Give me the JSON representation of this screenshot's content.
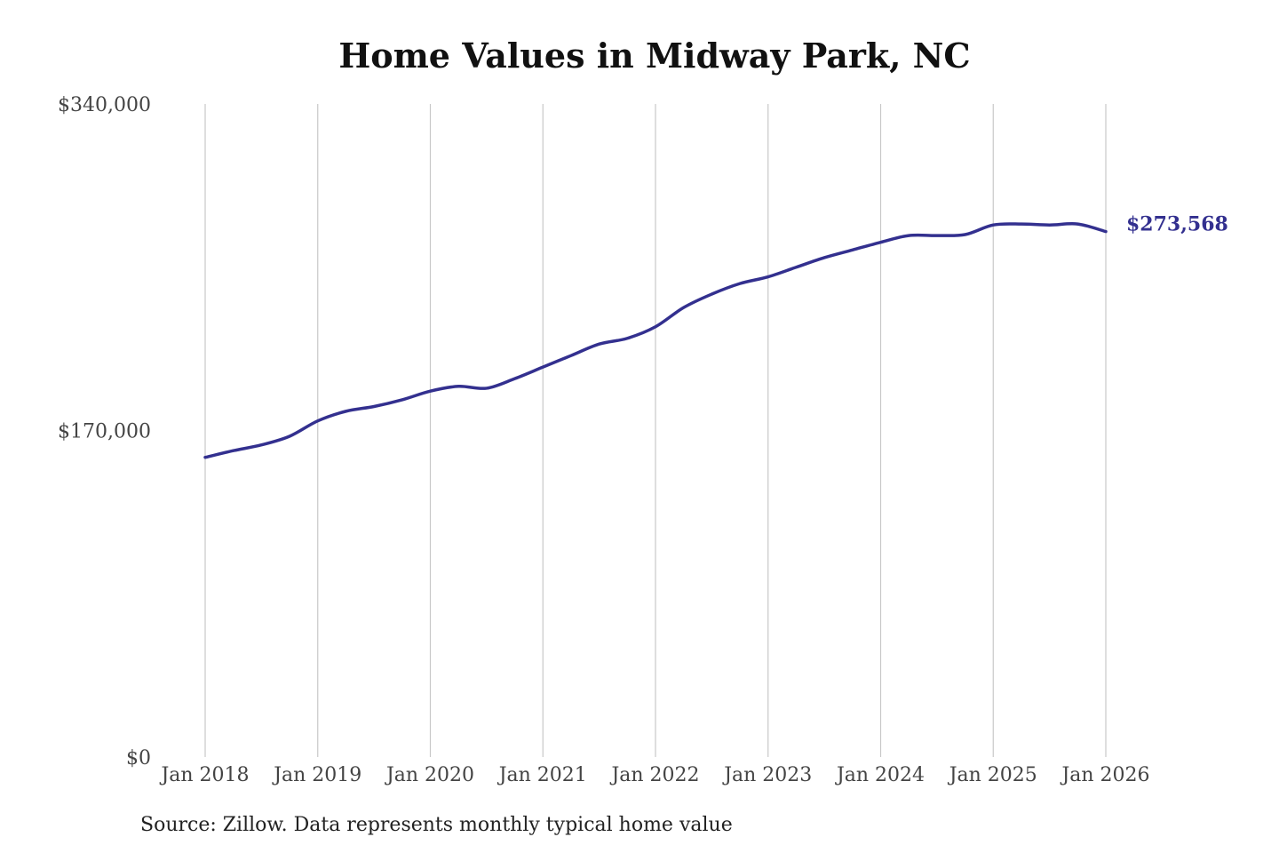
{
  "chart_data": {
    "type": "line",
    "title": "Home Values in Midway Park, NC",
    "source_note": "Source: Zillow. Data represents monthly typical home value",
    "xlabel": "",
    "ylabel": "",
    "x_ticks": [
      "Jan 2018",
      "Jan 2019",
      "Jan 2020",
      "Jan 2021",
      "Jan 2022",
      "Jan 2023",
      "Jan 2024",
      "Jan 2025",
      "Jan 2026"
    ],
    "y_ticks": [
      {
        "value": 0,
        "label": "$0"
      },
      {
        "value": 170000,
        "label": "$170,000"
      },
      {
        "value": 340000,
        "label": "$340,000"
      }
    ],
    "ylim": [
      0,
      340000
    ],
    "xlim": [
      "2018-01",
      "2026-01"
    ],
    "grid": {
      "vertical": true,
      "horizontal": false
    },
    "line_color": "#33308f",
    "end_label": "$273,568",
    "series": [
      {
        "points": [
          [
            "2018-01",
            156000
          ],
          [
            "2018-04",
            159500
          ],
          [
            "2018-07",
            162500
          ],
          [
            "2018-10",
            167000
          ],
          [
            "2019-01",
            175000
          ],
          [
            "2019-04",
            180000
          ],
          [
            "2019-07",
            182500
          ],
          [
            "2019-10",
            186000
          ],
          [
            "2020-01",
            190500
          ],
          [
            "2020-04",
            193000
          ],
          [
            "2020-07",
            192000
          ],
          [
            "2020-10",
            197000
          ],
          [
            "2021-01",
            203000
          ],
          [
            "2021-04",
            209000
          ],
          [
            "2021-07",
            215000
          ],
          [
            "2021-10",
            218000
          ],
          [
            "2022-01",
            224000
          ],
          [
            "2022-04",
            234000
          ],
          [
            "2022-07",
            241000
          ],
          [
            "2022-10",
            246500
          ],
          [
            "2023-01",
            250000
          ],
          [
            "2023-04",
            255000
          ],
          [
            "2023-07",
            260000
          ],
          [
            "2023-10",
            264000
          ],
          [
            "2024-01",
            268000
          ],
          [
            "2024-04",
            271500
          ],
          [
            "2024-07",
            271500
          ],
          [
            "2024-10",
            272000
          ],
          [
            "2025-01",
            277000
          ],
          [
            "2025-04",
            277500
          ],
          [
            "2025-07",
            277000
          ],
          [
            "2025-10",
            277500
          ],
          [
            "2026-01",
            273568
          ]
        ]
      }
    ]
  }
}
